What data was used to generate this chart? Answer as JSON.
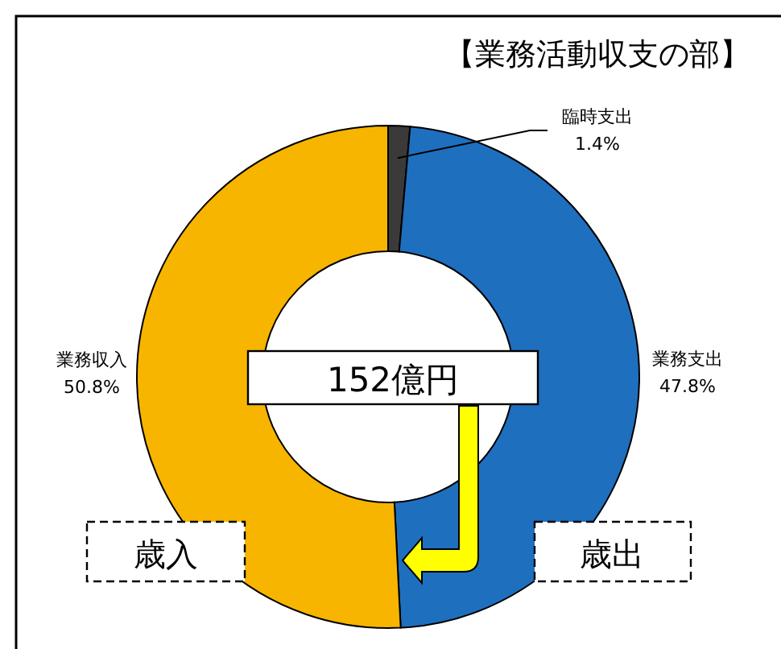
{
  "chart_data": {
    "type": "donut",
    "title": "【業務活動収支の部】",
    "categories": [
      "臨時支出",
      "業務支出",
      "業務収入"
    ],
    "values": [
      1.4,
      47.8,
      50.8
    ],
    "colors": [
      "#3a3a3a",
      "#1f6fbf",
      "#f7b500"
    ],
    "value_labels": [
      "1.4%",
      "47.8%",
      "50.8%"
    ],
    "annotations": [
      "152億円",
      "歳入",
      "歳出"
    ]
  }
}
